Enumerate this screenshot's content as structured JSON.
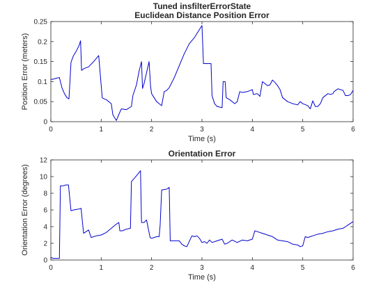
{
  "figure": {
    "background": "#ffffff",
    "axis_color": "#262626",
    "line_color": "#0000cc"
  },
  "chart_data": [
    {
      "type": "line",
      "title_lines": [
        "Tuned insfilterErrorState",
        "Euclidean Distance Position Error"
      ],
      "xlabel": "Time (s)",
      "ylabel": "Position Error (meters)",
      "xlim": [
        0,
        6
      ],
      "ylim": [
        0,
        0.25
      ],
      "xticks": [
        0,
        1,
        2,
        3,
        4,
        5,
        6
      ],
      "yticks": [
        0,
        0.05,
        0.1,
        0.15,
        0.2,
        0.25
      ],
      "xtick_labels": [
        "0",
        "1",
        "2",
        "3",
        "4",
        "5",
        "6"
      ],
      "ytick_labels": [
        "0",
        "0.05",
        "0.1",
        "0.15",
        "0.2",
        "0.25"
      ],
      "grid": false,
      "series": [
        {
          "color": "#0000cc",
          "x": [
            0,
            0.07,
            0.12,
            0.17,
            0.22,
            0.27,
            0.32,
            0.36,
            0.4,
            0.42,
            0.45,
            0.5,
            0.56,
            0.59,
            0.61,
            0.65,
            0.75,
            0.85,
            0.95,
            1.02,
            1.04,
            1.1,
            1.2,
            1.23,
            1.25,
            1.3,
            1.35,
            1.4,
            1.5,
            1.6,
            1.63,
            1.7,
            1.75,
            1.8,
            1.82,
            1.85,
            1.95,
            1.98,
            2.0,
            2.05,
            2.1,
            2.15,
            2.2,
            2.25,
            2.3,
            2.35,
            2.45,
            2.55,
            2.65,
            2.75,
            2.85,
            2.9,
            2.95,
            3.0,
            3.03,
            3.1,
            3.18,
            3.2,
            3.25,
            3.3,
            3.4,
            3.42,
            3.46,
            3.48,
            3.55,
            3.65,
            3.7,
            3.75,
            3.8,
            3.9,
            4.0,
            4.02,
            4.1,
            4.15,
            4.2,
            4.3,
            4.35,
            4.4,
            4.45,
            4.5,
            4.55,
            4.6,
            4.7,
            4.8,
            4.9,
            4.95,
            5.0,
            5.1,
            5.15,
            5.2,
            5.25,
            5.3,
            5.35,
            5.4,
            5.5,
            5.55,
            5.6,
            5.62,
            5.7,
            5.8,
            5.85,
            5.9,
            5.95,
            6.0
          ],
          "y": [
            0.105,
            0.107,
            0.109,
            0.11,
            0.085,
            0.07,
            0.06,
            0.057,
            0.148,
            0.155,
            0.165,
            0.175,
            0.19,
            0.202,
            0.128,
            0.132,
            0.137,
            0.15,
            0.165,
            0.06,
            0.058,
            0.055,
            0.045,
            0.018,
            0.013,
            0.003,
            0.018,
            0.032,
            0.03,
            0.038,
            0.066,
            0.092,
            0.125,
            0.15,
            0.083,
            0.095,
            0.15,
            0.088,
            0.07,
            0.06,
            0.05,
            0.045,
            0.04,
            0.075,
            0.078,
            0.085,
            0.11,
            0.14,
            0.17,
            0.195,
            0.21,
            0.22,
            0.23,
            0.24,
            0.145,
            0.145,
            0.145,
            0.065,
            0.045,
            0.038,
            0.035,
            0.1,
            0.1,
            0.06,
            0.055,
            0.045,
            0.05,
            0.075,
            0.073,
            0.075,
            0.08,
            0.068,
            0.07,
            0.063,
            0.1,
            0.09,
            0.092,
            0.104,
            0.098,
            0.09,
            0.08,
            0.06,
            0.05,
            0.045,
            0.042,
            0.05,
            0.045,
            0.04,
            0.032,
            0.052,
            0.038,
            0.038,
            0.045,
            0.06,
            0.07,
            0.068,
            0.07,
            0.075,
            0.082,
            0.078,
            0.065,
            0.065,
            0.068,
            0.078
          ]
        }
      ]
    },
    {
      "type": "line",
      "title_lines": [
        "Orientation Error"
      ],
      "xlabel": "Time (s)",
      "ylabel": "Orientation Error (degrees)",
      "xlim": [
        0,
        6
      ],
      "ylim": [
        0,
        12
      ],
      "xticks": [
        0,
        1,
        2,
        3,
        4,
        5,
        6
      ],
      "yticks": [
        0,
        2,
        4,
        6,
        8,
        10,
        12
      ],
      "xtick_labels": [
        "0",
        "1",
        "2",
        "3",
        "4",
        "5",
        "6"
      ],
      "ytick_labels": [
        "0",
        "2",
        "4",
        "6",
        "8",
        "10",
        "12"
      ],
      "grid": false,
      "series": [
        {
          "color": "#0000cc",
          "x": [
            0,
            0.05,
            0.1,
            0.17,
            0.19,
            0.25,
            0.3,
            0.35,
            0.4,
            0.45,
            0.55,
            0.6,
            0.65,
            0.75,
            0.8,
            0.9,
            1.0,
            1.1,
            1.2,
            1.3,
            1.35,
            1.37,
            1.42,
            1.5,
            1.58,
            1.6,
            1.7,
            1.78,
            1.8,
            1.85,
            1.9,
            1.97,
            2.0,
            2.05,
            2.1,
            2.15,
            2.17,
            2.2,
            2.3,
            2.35,
            2.37,
            2.4,
            2.45,
            2.55,
            2.6,
            2.65,
            2.7,
            2.8,
            2.85,
            2.9,
            2.95,
            3.0,
            3.05,
            3.1,
            3.15,
            3.2,
            3.3,
            3.4,
            3.45,
            3.5,
            3.6,
            3.7,
            3.8,
            3.9,
            4.0,
            4.05,
            4.1,
            4.2,
            4.3,
            4.4,
            4.5,
            4.6,
            4.7,
            4.8,
            4.9,
            4.95,
            5.0,
            5.05,
            5.1,
            5.15,
            5.2,
            5.3,
            5.4,
            5.5,
            5.6,
            5.7,
            5.8,
            5.85,
            5.9,
            5.95,
            6.0
          ],
          "y": [
            0.3,
            0.2,
            0.2,
            0.2,
            8.9,
            8.9,
            9.0,
            9.0,
            5.9,
            6.0,
            6.1,
            6.2,
            3.2,
            3.6,
            2.7,
            2.9,
            3.0,
            3.3,
            3.8,
            4.3,
            4.5,
            3.5,
            3.5,
            3.7,
            3.8,
            9.4,
            10.1,
            10.7,
            4.5,
            4.5,
            4.8,
            2.7,
            2.6,
            2.7,
            2.8,
            2.8,
            4.2,
            8.4,
            8.5,
            8.7,
            2.3,
            2.3,
            2.3,
            2.3,
            1.9,
            1.7,
            1.6,
            2.9,
            2.8,
            2.9,
            2.6,
            2.1,
            2.2,
            2.0,
            2.4,
            2.1,
            2.3,
            2.5,
            1.9,
            2.0,
            2.4,
            2.1,
            2.4,
            2.3,
            2.5,
            3.5,
            3.4,
            3.2,
            3.0,
            2.8,
            2.4,
            2.3,
            2.2,
            1.9,
            1.8,
            1.6,
            1.7,
            2.8,
            2.7,
            2.8,
            2.9,
            3.1,
            3.2,
            3.4,
            3.5,
            3.7,
            3.8,
            4.0,
            4.2,
            4.4,
            4.6
          ]
        }
      ]
    }
  ]
}
